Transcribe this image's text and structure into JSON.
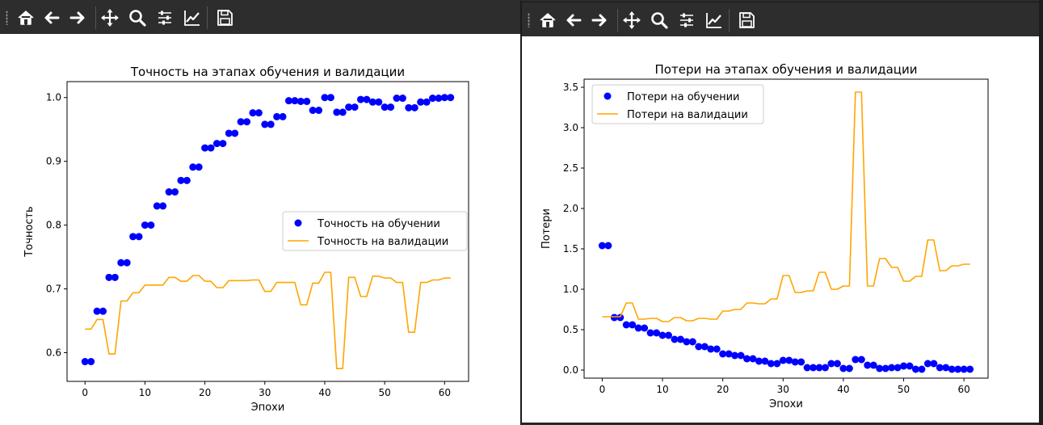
{
  "toolbar": {
    "buttons": [
      {
        "name": "home-icon",
        "label": "Home"
      },
      {
        "name": "back-icon",
        "label": "Back"
      },
      {
        "name": "forward-icon",
        "label": "Forward"
      },
      {
        "name": "pan-icon",
        "label": "Pan"
      },
      {
        "name": "zoom-icon",
        "label": "Zoom"
      },
      {
        "name": "subplots-icon",
        "label": "Configure subplots"
      },
      {
        "name": "edit-axis-icon",
        "label": "Edit axis"
      },
      {
        "name": "save-icon",
        "label": "Save"
      }
    ]
  },
  "colors": {
    "train": "#0000ff",
    "val": "#ffa500",
    "toolbar_bg": "#2d2d2d"
  },
  "chart_data": [
    {
      "type": "line",
      "title": "Точность на этапах обучения и валидации",
      "xlabel": "Эпохи",
      "ylabel": "Точность",
      "xlim": [
        -3,
        64
      ],
      "ylim": [
        0.555,
        1.025
      ],
      "xticks": [
        "0",
        "10",
        "20",
        "30",
        "40",
        "50",
        "60"
      ],
      "yticks": [
        "0.6",
        "0.7",
        "0.8",
        "0.9",
        "1.0"
      ],
      "legend_position": "center-right",
      "series": [
        {
          "name": "Точность на обучении",
          "style": "points",
          "x": [
            0,
            1,
            2,
            3,
            4,
            5,
            6,
            7,
            8,
            9,
            10,
            11,
            12,
            13,
            14,
            15,
            16,
            17,
            18,
            19,
            20,
            21,
            22,
            23,
            24,
            25,
            26,
            27,
            28,
            29,
            30,
            31,
            32,
            33,
            34,
            35,
            36,
            37,
            38,
            39,
            40,
            41,
            42,
            43,
            44,
            45,
            46,
            47,
            48,
            49,
            50,
            51,
            52,
            53,
            54,
            55,
            56,
            57,
            58,
            59,
            60,
            61
          ],
          "values": [
            0.586,
            0.586,
            0.665,
            0.665,
            0.718,
            0.718,
            0.741,
            0.741,
            0.782,
            0.782,
            0.8,
            0.8,
            0.83,
            0.83,
            0.852,
            0.852,
            0.87,
            0.87,
            0.891,
            0.891,
            0.921,
            0.921,
            0.928,
            0.928,
            0.944,
            0.944,
            0.962,
            0.962,
            0.976,
            0.976,
            0.958,
            0.958,
            0.97,
            0.97,
            0.995,
            0.995,
            0.994,
            0.994,
            0.98,
            0.98,
            1.0,
            1.0,
            0.977,
            0.977,
            0.985,
            0.985,
            0.997,
            0.997,
            0.993,
            0.993,
            0.985,
            0.985,
            0.999,
            0.999,
            0.984,
            0.984,
            0.993,
            0.993,
            0.999,
            0.999,
            1.0,
            1.0
          ]
        },
        {
          "name": "Точность на валидации",
          "style": "line",
          "x": [
            0,
            1,
            2,
            3,
            4,
            5,
            6,
            7,
            8,
            9,
            10,
            11,
            12,
            13,
            14,
            15,
            16,
            17,
            18,
            19,
            20,
            21,
            22,
            23,
            24,
            25,
            26,
            27,
            28,
            29,
            30,
            31,
            32,
            33,
            34,
            35,
            36,
            37,
            38,
            39,
            40,
            41,
            42,
            43,
            44,
            45,
            46,
            47,
            48,
            49,
            50,
            51,
            52,
            53,
            54,
            55,
            56,
            57,
            58,
            59,
            60,
            61
          ],
          "values": [
            0.637,
            0.637,
            0.652,
            0.652,
            0.598,
            0.598,
            0.681,
            0.681,
            0.694,
            0.694,
            0.706,
            0.706,
            0.706,
            0.706,
            0.718,
            0.718,
            0.712,
            0.712,
            0.721,
            0.721,
            0.712,
            0.712,
            0.702,
            0.702,
            0.713,
            0.713,
            0.713,
            0.713,
            0.714,
            0.714,
            0.696,
            0.696,
            0.71,
            0.71,
            0.71,
            0.71,
            0.675,
            0.675,
            0.709,
            0.709,
            0.726,
            0.726,
            0.575,
            0.575,
            0.718,
            0.718,
            0.688,
            0.688,
            0.72,
            0.72,
            0.717,
            0.717,
            0.71,
            0.71,
            0.632,
            0.632,
            0.71,
            0.71,
            0.714,
            0.714,
            0.717,
            0.717
          ]
        }
      ]
    },
    {
      "type": "line",
      "title": "Потери на этапах обучения и валидации",
      "xlabel": "Эпохи",
      "ylabel": "Потери",
      "xlim": [
        -3,
        64
      ],
      "ylim": [
        -0.1,
        3.6
      ],
      "xticks": [
        "0",
        "10",
        "20",
        "30",
        "40",
        "50",
        "60"
      ],
      "yticks": [
        "0.0",
        "0.5",
        "1.0",
        "1.5",
        "2.0",
        "2.5",
        "3.0",
        "3.5"
      ],
      "legend_position": "upper-left",
      "series": [
        {
          "name": "Потери на обучении",
          "style": "points",
          "x": [
            0,
            1,
            2,
            3,
            4,
            5,
            6,
            7,
            8,
            9,
            10,
            11,
            12,
            13,
            14,
            15,
            16,
            17,
            18,
            19,
            20,
            21,
            22,
            23,
            24,
            25,
            26,
            27,
            28,
            29,
            30,
            31,
            32,
            33,
            34,
            35,
            36,
            37,
            38,
            39,
            40,
            41,
            42,
            43,
            44,
            45,
            46,
            47,
            48,
            49,
            50,
            51,
            52,
            53,
            54,
            55,
            56,
            57,
            58,
            59,
            60,
            61
          ],
          "values": [
            1.54,
            1.54,
            0.65,
            0.65,
            0.56,
            0.56,
            0.52,
            0.52,
            0.46,
            0.46,
            0.43,
            0.43,
            0.38,
            0.38,
            0.35,
            0.35,
            0.29,
            0.29,
            0.26,
            0.26,
            0.2,
            0.2,
            0.18,
            0.18,
            0.14,
            0.14,
            0.11,
            0.11,
            0.08,
            0.08,
            0.12,
            0.12,
            0.1,
            0.1,
            0.03,
            0.03,
            0.03,
            0.03,
            0.08,
            0.08,
            0.02,
            0.02,
            0.13,
            0.13,
            0.06,
            0.06,
            0.02,
            0.02,
            0.03,
            0.03,
            0.05,
            0.05,
            0.01,
            0.01,
            0.08,
            0.08,
            0.03,
            0.03,
            0.01,
            0.01,
            0.01,
            0.01
          ]
        },
        {
          "name": "Потери на валидации",
          "style": "line",
          "x": [
            0,
            1,
            2,
            3,
            4,
            5,
            6,
            7,
            8,
            9,
            10,
            11,
            12,
            13,
            14,
            15,
            16,
            17,
            18,
            19,
            20,
            21,
            22,
            23,
            24,
            25,
            26,
            27,
            28,
            29,
            30,
            31,
            32,
            33,
            34,
            35,
            36,
            37,
            38,
            39,
            40,
            41,
            42,
            43,
            44,
            45,
            46,
            47,
            48,
            49,
            50,
            51,
            52,
            53,
            54,
            55,
            56,
            57,
            58,
            59,
            60,
            61
          ],
          "values": [
            0.66,
            0.66,
            0.66,
            0.66,
            0.83,
            0.83,
            0.63,
            0.63,
            0.64,
            0.64,
            0.6,
            0.6,
            0.65,
            0.65,
            0.61,
            0.61,
            0.64,
            0.64,
            0.63,
            0.63,
            0.73,
            0.73,
            0.75,
            0.75,
            0.83,
            0.83,
            0.82,
            0.82,
            0.88,
            0.88,
            1.17,
            1.17,
            0.96,
            0.96,
            0.98,
            0.98,
            1.21,
            1.21,
            1.0,
            1.0,
            1.04,
            1.04,
            3.44,
            3.44,
            1.04,
            1.04,
            1.38,
            1.38,
            1.27,
            1.27,
            1.1,
            1.1,
            1.16,
            1.16,
            1.61,
            1.61,
            1.23,
            1.23,
            1.29,
            1.29,
            1.31,
            1.31
          ]
        }
      ]
    }
  ]
}
